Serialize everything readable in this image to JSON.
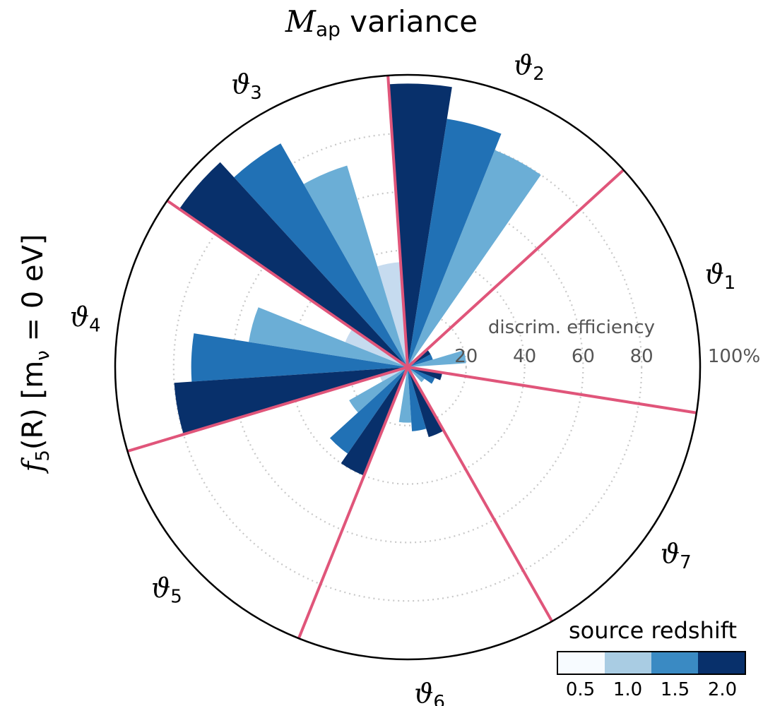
{
  "title_main": "M",
  "title_sub": "ap",
  "title_rest": "variance",
  "ylabel": {
    "func": "f",
    "func_sub": "5",
    "arg": "(R)",
    "bracket": "[m",
    "bracket_sub": "ν",
    "rest": " = 0 eV]"
  },
  "chart_data": {
    "type": "polar-bar",
    "radial_axis_label": "discrim. efficiency",
    "radial_ticks": [
      "20",
      "40",
      "60",
      "80",
      "100%"
    ],
    "radial_tick_values": [
      20,
      40,
      60,
      80,
      100
    ],
    "rmax": 100,
    "grid": "dotted",
    "sector_labels": [
      "ϑ1",
      "ϑ2",
      "ϑ3",
      "ϑ4",
      "ϑ5",
      "ϑ6",
      "ϑ7"
    ],
    "source_redshifts": [
      "0.5",
      "1.0",
      "1.5",
      "2.0"
    ],
    "series": [
      {
        "name": "0.5",
        "color": "#c6dbef",
        "values": [
          1,
          2,
          36,
          23,
          10,
          3,
          1
        ]
      },
      {
        "name": "1.0",
        "color": "#6baed6",
        "values": [
          20,
          80,
          72,
          55,
          23,
          19,
          7
        ]
      },
      {
        "name": "1.5",
        "color": "#2171b5",
        "values": [
          9,
          86,
          88,
          74,
          36,
          22,
          10
        ]
      },
      {
        "name": "2.0",
        "color": "#08306b",
        "values": [
          9,
          97,
          95,
          80,
          40,
          25,
          12
        ]
      }
    ]
  },
  "colorbar": {
    "title": "source redshift",
    "colors": [
      "#f7fbff",
      "#a9cce3",
      "#3a8ac3",
      "#08306b"
    ],
    "ticks": [
      "0.5",
      "1.0",
      "1.5",
      "2.0"
    ]
  }
}
